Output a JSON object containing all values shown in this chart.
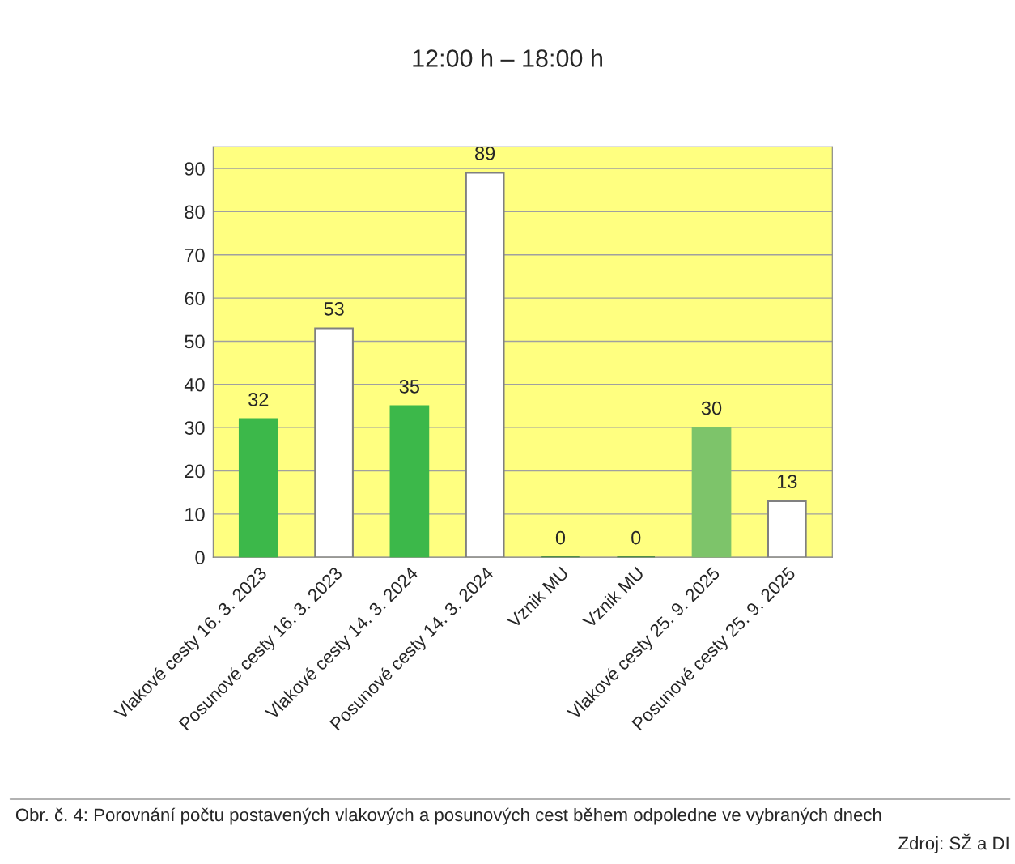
{
  "chart_data": {
    "type": "bar",
    "title": "12:00 h – 18:00 h",
    "categories": [
      "Vlakové cesty 16. 3. 2023",
      "Posunové cesty 16. 3. 2023",
      "Vlakové cesty 14. 3. 2024",
      "Posunové cesty 14. 3. 2024",
      "Vznik MU",
      "Vznik MU",
      "Vlakové cesty 25. 9. 2025",
      "Posunové cesty 25. 9. 2025"
    ],
    "values": [
      32,
      53,
      35,
      89,
      0,
      0,
      30,
      13
    ],
    "colors": [
      "#3cb84a",
      "#ffffff",
      "#3cb84a",
      "#ffffff",
      "#2e7d32",
      "#2e7d32",
      "#7dc46a",
      "#ffffff"
    ],
    "ylim": [
      0,
      95
    ],
    "yticks": [
      0,
      10,
      20,
      30,
      40,
      50,
      60,
      70,
      80,
      90
    ],
    "grid": "y",
    "data_labels": true,
    "annotations": [
      "Obr. č. 4: Porovnání počtu postavených vlakových a posunových cest během odpoledne ve vybraných dnech",
      "Zdroj: SŽ a DI"
    ]
  }
}
